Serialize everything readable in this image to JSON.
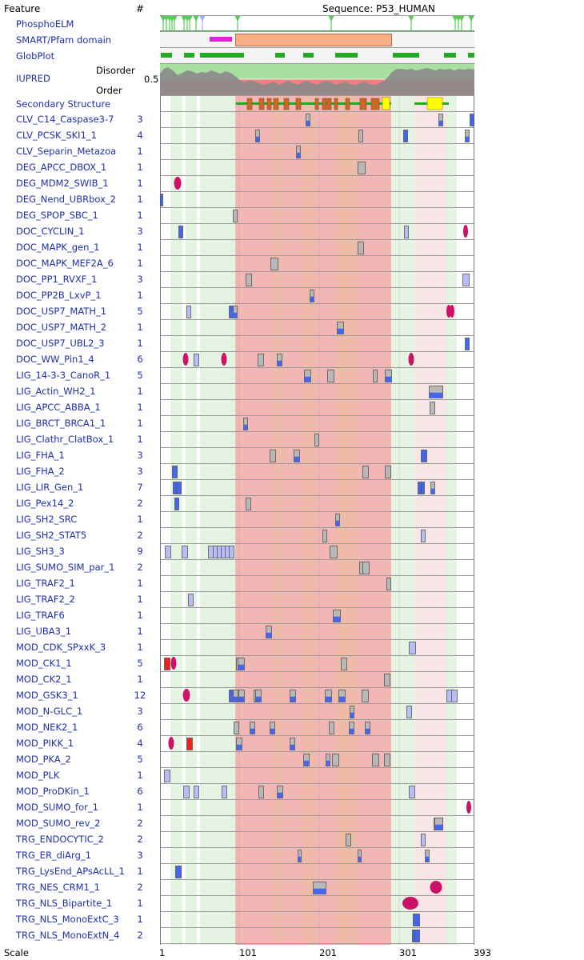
{
  "header": {
    "feature_label": "Feature",
    "count_label": "#",
    "sequence_label": "Sequence: P53_HUMAN"
  },
  "tracks": {
    "phosphoelm": "PhosphoELM",
    "smart": "SMART/Pfam domain",
    "globplot": "GlobPlot",
    "iupred": "IUPRED",
    "disorder": "Disorder",
    "order": "Order",
    "iupred_threshold": "0.5",
    "secondary": "Secondary Structure"
  },
  "sequence_length": 393,
  "colors": {
    "label_text": "#1f2fa8",
    "disorder_green": "#a9dfa1",
    "order_red": "#f08080",
    "domain_orange": "#f9b087",
    "globplot_green": "#22aa22",
    "phospho_green": "#55cc55",
    "iupred_curve": "#8a8a8a",
    "helix_orange": "#c8692a",
    "strand_yellow": "#ffff00",
    "instance_grey": "#b8b8b8",
    "instance_blue": "#4466ee",
    "instance_lightblue": "#b9bdf5",
    "instance_red": "#ee2222",
    "instance_magenta": "#cc1166"
  },
  "motifs": [
    {
      "name": "CLV_C14_Caspase3-7",
      "count": "3"
    },
    {
      "name": "CLV_PCSK_SKI1_1",
      "count": "4"
    },
    {
      "name": "CLV_Separin_Metazoa",
      "count": "1"
    },
    {
      "name": "DEG_APCC_DBOX_1",
      "count": "1"
    },
    {
      "name": "DEG_MDM2_SWIB_1",
      "count": "1"
    },
    {
      "name": "DEG_Nend_UBRbox_2",
      "count": "1"
    },
    {
      "name": "DEG_SPOP_SBC_1",
      "count": "1"
    },
    {
      "name": "DOC_CYCLIN_1",
      "count": "3"
    },
    {
      "name": "DOC_MAPK_gen_1",
      "count": "1"
    },
    {
      "name": "DOC_MAPK_MEF2A_6",
      "count": "1"
    },
    {
      "name": "DOC_PP1_RVXF_1",
      "count": "3"
    },
    {
      "name": "DOC_PP2B_LxvP_1",
      "count": "1"
    },
    {
      "name": "DOC_USP7_MATH_1",
      "count": "5"
    },
    {
      "name": "DOC_USP7_MATH_2",
      "count": "1"
    },
    {
      "name": "DOC_USP7_UBL2_3",
      "count": "1"
    },
    {
      "name": "DOC_WW_Pin1_4",
      "count": "6"
    },
    {
      "name": "LIG_14-3-3_CanoR_1",
      "count": "5"
    },
    {
      "name": "LIG_Actin_WH2_1",
      "count": "1"
    },
    {
      "name": "LIG_APCC_ABBA_1",
      "count": "1"
    },
    {
      "name": "LIG_BRCT_BRCA1_1",
      "count": "1"
    },
    {
      "name": "LIG_Clathr_ClatBox_1",
      "count": "1"
    },
    {
      "name": "LIG_FHA_1",
      "count": "3"
    },
    {
      "name": "LIG_FHA_2",
      "count": "3"
    },
    {
      "name": "LIG_LIR_Gen_1",
      "count": "7"
    },
    {
      "name": "LIG_Pex14_2",
      "count": "2"
    },
    {
      "name": "LIG_SH2_SRC",
      "count": "1"
    },
    {
      "name": "LIG_SH2_STAT5",
      "count": "2"
    },
    {
      "name": "LIG_SH3_3",
      "count": "9"
    },
    {
      "name": "LIG_SUMO_SIM_par_1",
      "count": "2"
    },
    {
      "name": "LIG_TRAF2_1",
      "count": "1"
    },
    {
      "name": "LIG_TRAF2_2",
      "count": "1"
    },
    {
      "name": "LIG_TRAF6",
      "count": "1"
    },
    {
      "name": "LIG_UBA3_1",
      "count": "1"
    },
    {
      "name": "MOD_CDK_SPxxK_3",
      "count": "1"
    },
    {
      "name": "MOD_CK1_1",
      "count": "5"
    },
    {
      "name": "MOD_CK2_1",
      "count": "1"
    },
    {
      "name": "MOD_GSK3_1",
      "count": "12"
    },
    {
      "name": "MOD_N-GLC_1",
      "count": "3"
    },
    {
      "name": "MOD_NEK2_1",
      "count": "6"
    },
    {
      "name": "MOD_PIKK_1",
      "count": "4"
    },
    {
      "name": "MOD_PKA_2",
      "count": "5"
    },
    {
      "name": "MOD_PLK",
      "count": "1"
    },
    {
      "name": "MOD_ProDKin_1",
      "count": "6"
    },
    {
      "name": "MOD_SUMO_for_1",
      "count": "1"
    },
    {
      "name": "MOD_SUMO_rev_2",
      "count": "2"
    },
    {
      "name": "TRG_ENDOCYTIC_2",
      "count": "2"
    },
    {
      "name": "TRG_ER_diArg_1",
      "count": "3"
    },
    {
      "name": "TRG_LysEnd_APsAcLL_1",
      "count": "1"
    },
    {
      "name": "TRG_NES_CRM1_1",
      "count": "2"
    },
    {
      "name": "TRG_NLS_Bipartite_1",
      "count": "1"
    },
    {
      "name": "TRG_NLS_MonoExtC_3",
      "count": "1"
    },
    {
      "name": "TRG_NLS_MonoExtN_4",
      "count": "2"
    }
  ],
  "scale": {
    "label": "Scale",
    "ticks": [
      "1",
      "101",
      "201",
      "301",
      "393"
    ]
  }
}
